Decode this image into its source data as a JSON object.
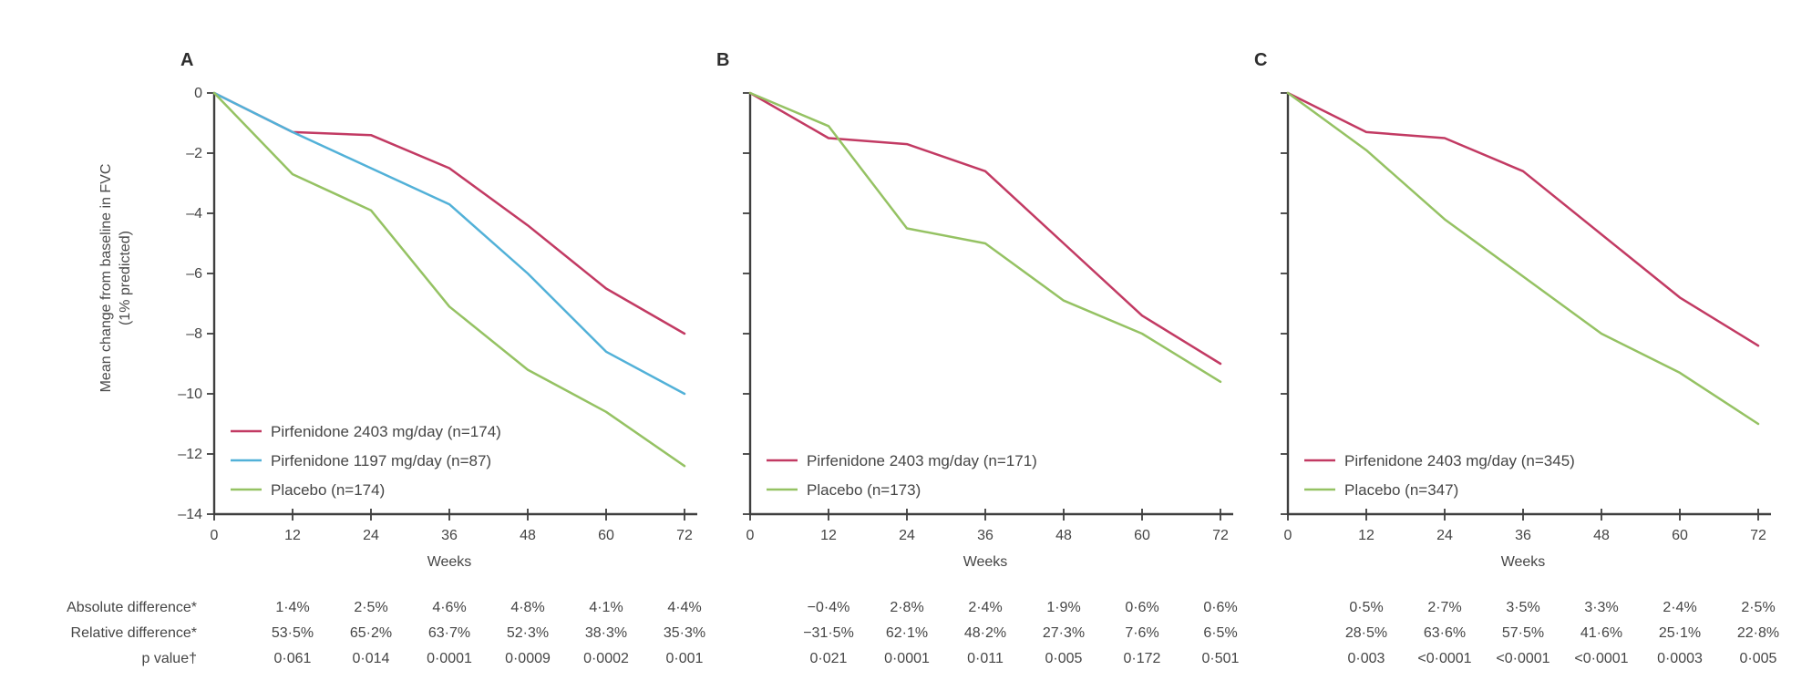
{
  "figure": {
    "y_axis_label_line1": "Mean change from baseline in FVC",
    "y_axis_label_line2": "(1% predicted)",
    "x_axis_label": "Weeks",
    "colors": {
      "pirfenidone_2403": "#c23a63",
      "pirfenidone_1197": "#52b1d8",
      "placebo": "#95c263",
      "axis": "#3f3f3f",
      "text": "#454545"
    }
  },
  "table_labels": {
    "absolute": "Absolute difference*",
    "relative": "Relative difference*",
    "p": "p value†"
  },
  "chart_data": [
    {
      "type": "line",
      "panel": "A",
      "x": [
        0,
        12,
        24,
        36,
        48,
        60,
        72
      ],
      "x_tick_labels": [
        "0",
        "12",
        "24",
        "36",
        "48",
        "60",
        "72"
      ],
      "xlabel": "Weeks",
      "ylabel": "Mean change from baseline in FVC (1% predicted)",
      "ylim": [
        -14,
        0
      ],
      "yticks": [
        0,
        -2,
        -4,
        -6,
        -8,
        -10,
        -12,
        -14
      ],
      "ytick_labels": [
        "0",
        "–2",
        "–4",
        "–6",
        "–8",
        "–10",
        "–12",
        "–14"
      ],
      "show_ytick_labels": true,
      "grid": false,
      "legend_position": "lower-left",
      "series": [
        {
          "name": "Pirfenidone 2403 mg/day (n=174)",
          "color_key": "pirfenidone_2403",
          "values": [
            0,
            -1.3,
            -1.4,
            -2.5,
            -4.4,
            -6.5,
            -8.0
          ]
        },
        {
          "name": "Pirfenidone 1197 mg/day (n=87)",
          "color_key": "pirfenidone_1197",
          "values": [
            0,
            -1.3,
            -2.5,
            -3.7,
            -6.0,
            -8.6,
            -10.0
          ]
        },
        {
          "name": "Placebo (n=174)",
          "color_key": "placebo",
          "values": [
            0,
            -2.7,
            -3.9,
            -7.1,
            -9.2,
            -10.6,
            -12.4
          ]
        }
      ],
      "table": {
        "weeks": [
          12,
          24,
          36,
          48,
          60,
          72
        ],
        "absolute": [
          "1·4%",
          "2·5%",
          "4·6%",
          "4·8%",
          "4·1%",
          "4·4%"
        ],
        "relative": [
          "53·5%",
          "65·2%",
          "63·7%",
          "52·3%",
          "38·3%",
          "35·3%"
        ],
        "p": [
          "0·061",
          "0·014",
          "0·0001",
          "0·0009",
          "0·0002",
          "0·001"
        ]
      }
    },
    {
      "type": "line",
      "panel": "B",
      "x": [
        0,
        12,
        24,
        36,
        48,
        60,
        72
      ],
      "x_tick_labels": [
        "0",
        "12",
        "24",
        "36",
        "48",
        "60",
        "72"
      ],
      "xlabel": "Weeks",
      "ylabel": "Mean change from baseline in FVC (1% predicted)",
      "ylim": [
        -14,
        0
      ],
      "yticks": [
        0,
        -2,
        -4,
        -6,
        -8,
        -10,
        -12,
        -14
      ],
      "ytick_labels": [],
      "show_ytick_labels": false,
      "grid": false,
      "legend_position": "lower-left",
      "series": [
        {
          "name": "Pirfenidone 2403 mg/day (n=171)",
          "color_key": "pirfenidone_2403",
          "values": [
            0,
            -1.5,
            -1.7,
            -2.6,
            -5.0,
            -7.4,
            -9.0
          ]
        },
        {
          "name": "Placebo (n=173)",
          "color_key": "placebo",
          "values": [
            0,
            -1.1,
            -4.5,
            -5.0,
            -6.9,
            -8.0,
            -9.6
          ]
        }
      ],
      "table": {
        "weeks": [
          12,
          24,
          36,
          48,
          60,
          72
        ],
        "absolute": [
          "−0·4%",
          "2·8%",
          "2·4%",
          "1·9%",
          "0·6%",
          "0·6%"
        ],
        "relative": [
          "−31·5%",
          "62·1%",
          "48·2%",
          "27·3%",
          "7·6%",
          "6·5%"
        ],
        "p": [
          "0·021",
          "0·0001",
          "0·011",
          "0·005",
          "0·172",
          "0·501"
        ]
      }
    },
    {
      "type": "line",
      "panel": "C",
      "x": [
        0,
        12,
        24,
        36,
        48,
        60,
        72
      ],
      "x_tick_labels": [
        "0",
        "12",
        "24",
        "36",
        "48",
        "60",
        "72"
      ],
      "xlabel": "Weeks",
      "ylabel": "Mean change from baseline in FVC (1% predicted)",
      "ylim": [
        -14,
        0
      ],
      "yticks": [
        0,
        -2,
        -4,
        -6,
        -8,
        -10,
        -12,
        -14
      ],
      "ytick_labels": [],
      "show_ytick_labels": false,
      "grid": false,
      "legend_position": "lower-left",
      "series": [
        {
          "name": "Pirfenidone 2403 mg/day (n=345)",
          "color_key": "pirfenidone_2403",
          "values": [
            0,
            -1.3,
            -1.5,
            -2.6,
            -4.7,
            -6.8,
            -8.4
          ]
        },
        {
          "name": "Placebo (n=347)",
          "color_key": "placebo",
          "values": [
            0,
            -1.9,
            -4.2,
            -6.1,
            -8.0,
            -9.3,
            -11.0
          ]
        }
      ],
      "table": {
        "weeks": [
          12,
          24,
          36,
          48,
          60,
          72
        ],
        "absolute": [
          "0·5%",
          "2·7%",
          "3·5%",
          "3·3%",
          "2·4%",
          "2·5%"
        ],
        "relative": [
          "28·5%",
          "63·6%",
          "57·5%",
          "41·6%",
          "25·1%",
          "22·8%"
        ],
        "p": [
          "0·003",
          "<0·0001",
          "<0·0001",
          "<0·0001",
          "0·0003",
          "0·005"
        ]
      }
    }
  ]
}
